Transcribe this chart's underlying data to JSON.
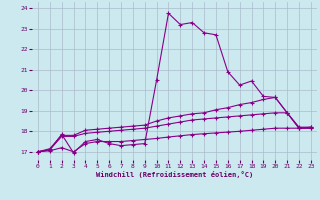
{
  "xlabel": "Windchill (Refroidissement éolien,°C)",
  "bg_color": "#cce9f0",
  "line_color": "#880088",
  "grid_color": "#aabbcc",
  "xlim": [
    -0.5,
    23.5
  ],
  "ylim": [
    16.6,
    24.3
  ],
  "yticks": [
    17,
    18,
    19,
    20,
    21,
    22,
    23,
    24
  ],
  "xticks": [
    0,
    1,
    2,
    3,
    4,
    5,
    6,
    7,
    8,
    9,
    10,
    11,
    12,
    13,
    14,
    15,
    16,
    17,
    18,
    19,
    20,
    21,
    22,
    23
  ],
  "series1_x": [
    0,
    1,
    2,
    3,
    4,
    5,
    6,
    7,
    8,
    9,
    10,
    11,
    12,
    13,
    14,
    15,
    16,
    17,
    18,
    19,
    20,
    21,
    22,
    23
  ],
  "series1_y": [
    17.0,
    17.1,
    17.85,
    16.95,
    17.5,
    17.6,
    17.4,
    17.3,
    17.35,
    17.4,
    20.5,
    23.75,
    23.2,
    23.3,
    22.8,
    22.7,
    20.9,
    20.25,
    20.45,
    19.7,
    19.65,
    18.9,
    18.15,
    18.15
  ],
  "series2_x": [
    0,
    1,
    2,
    3,
    4,
    5,
    6,
    7,
    8,
    9,
    10,
    11,
    12,
    13,
    14,
    15,
    16,
    17,
    18,
    19,
    20,
    21,
    22,
    23
  ],
  "series2_y": [
    17.0,
    17.15,
    17.8,
    17.8,
    18.05,
    18.1,
    18.15,
    18.2,
    18.25,
    18.3,
    18.5,
    18.65,
    18.75,
    18.85,
    18.9,
    19.05,
    19.15,
    19.3,
    19.4,
    19.55,
    19.65,
    18.9,
    18.2,
    18.2
  ],
  "series3_x": [
    0,
    1,
    2,
    3,
    4,
    5,
    6,
    7,
    8,
    9,
    10,
    11,
    12,
    13,
    14,
    15,
    16,
    17,
    18,
    19,
    20,
    21,
    22,
    23
  ],
  "series3_y": [
    17.0,
    17.1,
    17.75,
    17.75,
    17.9,
    17.95,
    18.0,
    18.05,
    18.1,
    18.15,
    18.25,
    18.35,
    18.45,
    18.55,
    18.6,
    18.65,
    18.7,
    18.75,
    18.8,
    18.85,
    18.9,
    18.9,
    18.15,
    18.15
  ],
  "series4_x": [
    0,
    1,
    2,
    3,
    4,
    5,
    6,
    7,
    8,
    9,
    10,
    11,
    12,
    13,
    14,
    15,
    16,
    17,
    18,
    19,
    20,
    21,
    22,
    23
  ],
  "series4_y": [
    17.0,
    17.05,
    17.2,
    17.0,
    17.4,
    17.5,
    17.5,
    17.5,
    17.55,
    17.6,
    17.65,
    17.72,
    17.78,
    17.84,
    17.88,
    17.92,
    17.96,
    18.0,
    18.05,
    18.1,
    18.15,
    18.15,
    18.15,
    18.2
  ]
}
